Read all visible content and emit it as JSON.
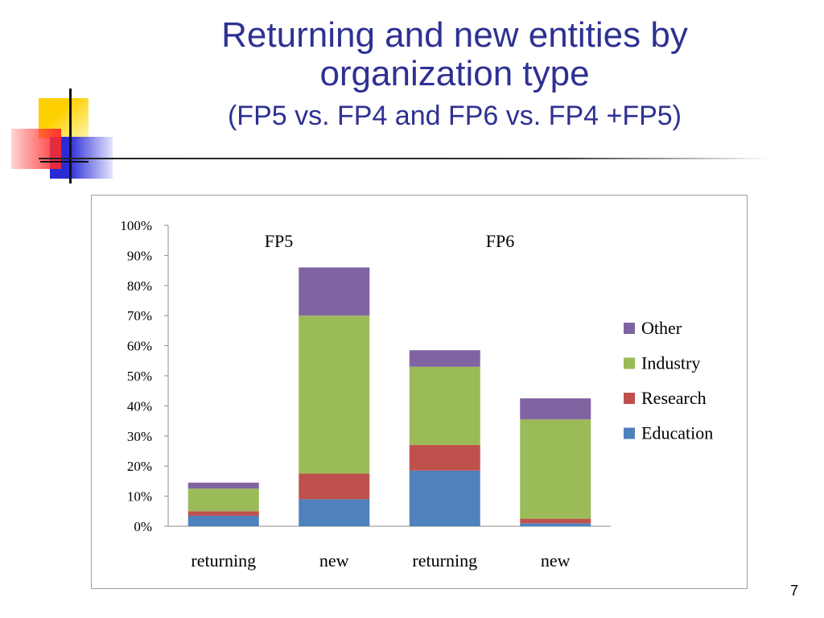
{
  "slide": {
    "title_line1": "Returning and new entities by",
    "title_line2": "organization type",
    "subtitle": "(FP5 vs. FP4 and FP6 vs. FP4 +FP5)",
    "page_number": "7"
  },
  "chart_data": {
    "type": "bar",
    "stacked": true,
    "categories": [
      "returning",
      "new",
      "returning",
      "new"
    ],
    "group_labels": [
      {
        "label": "FP5",
        "after_category": 0
      },
      {
        "label": "FP6",
        "after_category": 2
      }
    ],
    "series": [
      {
        "name": "Education",
        "color": "#4f81bd",
        "values": [
          3.5,
          9,
          18.5,
          1
        ]
      },
      {
        "name": "Research",
        "color": "#c0504d",
        "values": [
          1.5,
          8.5,
          8.5,
          1.5
        ]
      },
      {
        "name": "Industry",
        "color": "#9bbb59",
        "values": [
          7.5,
          52.5,
          26,
          33
        ]
      },
      {
        "name": "Other",
        "color": "#8064a2",
        "values": [
          2,
          16,
          5.5,
          7
        ]
      }
    ],
    "yticks": [
      "0%",
      "10%",
      "20%",
      "30%",
      "40%",
      "50%",
      "60%",
      "70%",
      "80%",
      "90%",
      "100%"
    ],
    "ylim": [
      0,
      100
    ],
    "legend_position": "right",
    "grid": false
  }
}
